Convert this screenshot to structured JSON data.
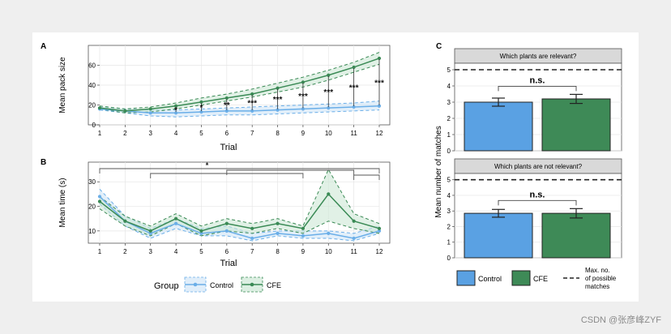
{
  "colors": {
    "control": "#6aaee8",
    "control_fill": "#5aa1e3",
    "cfe": "#3a8a55",
    "cfe_fill": "#3e8a57",
    "sig": "#111111",
    "bracket": "#555555",
    "strip_bg": "#d9d9d9"
  },
  "watermark": "CSDN @张彦峰ZYF",
  "legend_left": {
    "title": "Group",
    "control": "Control",
    "cfe": "CFE"
  },
  "legend_right": {
    "control": "Control",
    "cfe": "CFE",
    "dash_lines": [
      "Max. no.",
      "of possible",
      "matches"
    ]
  },
  "chart_data": [
    {
      "panel": "A",
      "type": "line",
      "xlabel": "Trial",
      "ylabel": "Mean pack size",
      "x": [
        1,
        2,
        3,
        4,
        5,
        6,
        7,
        8,
        9,
        10,
        11,
        12
      ],
      "ylim": [
        0,
        80
      ],
      "yticks": [
        0,
        20,
        40,
        60
      ],
      "series": [
        {
          "name": "Control",
          "values": [
            16,
            14,
            12,
            12,
            13,
            14,
            14,
            15,
            16,
            17,
            18,
            19
          ],
          "ci_lower": [
            15,
            12,
            9,
            8,
            9,
            10,
            10,
            11,
            12,
            13,
            14,
            15
          ],
          "ci_upper": [
            18,
            16,
            15,
            15,
            16,
            17,
            18,
            19,
            20,
            21,
            22,
            24
          ]
        },
        {
          "name": "CFE",
          "values": [
            17,
            14,
            16,
            19,
            23,
            27,
            31,
            37,
            43,
            50,
            58,
            67
          ],
          "ci_lower": [
            16,
            12,
            13,
            16,
            20,
            24,
            28,
            33,
            38,
            45,
            53,
            61
          ],
          "ci_upper": [
            19,
            16,
            18,
            22,
            27,
            31,
            36,
            42,
            48,
            55,
            63,
            73
          ]
        }
      ],
      "significance": [
        "",
        "",
        "",
        "*",
        "*",
        "**",
        "***",
        "***",
        "***",
        "***",
        "***",
        "***"
      ]
    },
    {
      "panel": "B",
      "type": "line",
      "xlabel": "Trial",
      "ylabel": "Mean time (s)",
      "x": [
        1,
        2,
        3,
        4,
        5,
        6,
        7,
        8,
        9,
        10,
        11,
        12
      ],
      "ylim": [
        5,
        38
      ],
      "yticks": [
        10,
        20,
        30
      ],
      "series": [
        {
          "name": "Control",
          "values": [
            24,
            14,
            9,
            13,
            9,
            10,
            7,
            9,
            8,
            9,
            7,
            10
          ],
          "ci_lower": [
            21,
            12,
            7,
            11,
            8,
            8,
            6,
            8,
            7,
            7,
            6,
            9
          ],
          "ci_upper": [
            27,
            16,
            11,
            15,
            11,
            12,
            9,
            10,
            10,
            10,
            9,
            12
          ]
        },
        {
          "name": "CFE",
          "values": [
            22,
            14,
            10,
            15,
            10,
            13,
            11,
            13,
            11,
            25,
            14,
            11
          ],
          "ci_lower": [
            19,
            12,
            8,
            13,
            8,
            10,
            9,
            11,
            9,
            14,
            11,
            9
          ],
          "ci_upper": [
            24,
            16,
            12,
            17,
            12,
            15,
            13,
            15,
            12,
            35,
            17,
            13
          ]
        }
      ],
      "significance": [
        {
          "from": 1,
          "to": 12,
          "label": "*"
        },
        {
          "from": 3,
          "to": 9,
          "label": ""
        },
        {
          "from": 6,
          "to": 11,
          "label": ""
        },
        {
          "from": 11,
          "to": 12,
          "label": ""
        }
      ]
    },
    {
      "panel": "C",
      "type": "bar",
      "facets": [
        {
          "strip": "Which plants are relevant?",
          "values": [
            3.0,
            3.2
          ],
          "errors": [
            0.25,
            0.28
          ],
          "max_possible": 5,
          "annotation": "n.s."
        },
        {
          "strip": "Which plants are not relevant?",
          "values": [
            2.85,
            2.85
          ],
          "errors": [
            0.25,
            0.3
          ],
          "max_possible": 5,
          "annotation": "n.s."
        }
      ],
      "categories": [
        "Control",
        "CFE"
      ],
      "ylabel": "Mean number of matches",
      "ylim": [
        0,
        5.4
      ],
      "yticks": [
        0,
        1,
        2,
        3,
        4,
        5
      ]
    }
  ]
}
